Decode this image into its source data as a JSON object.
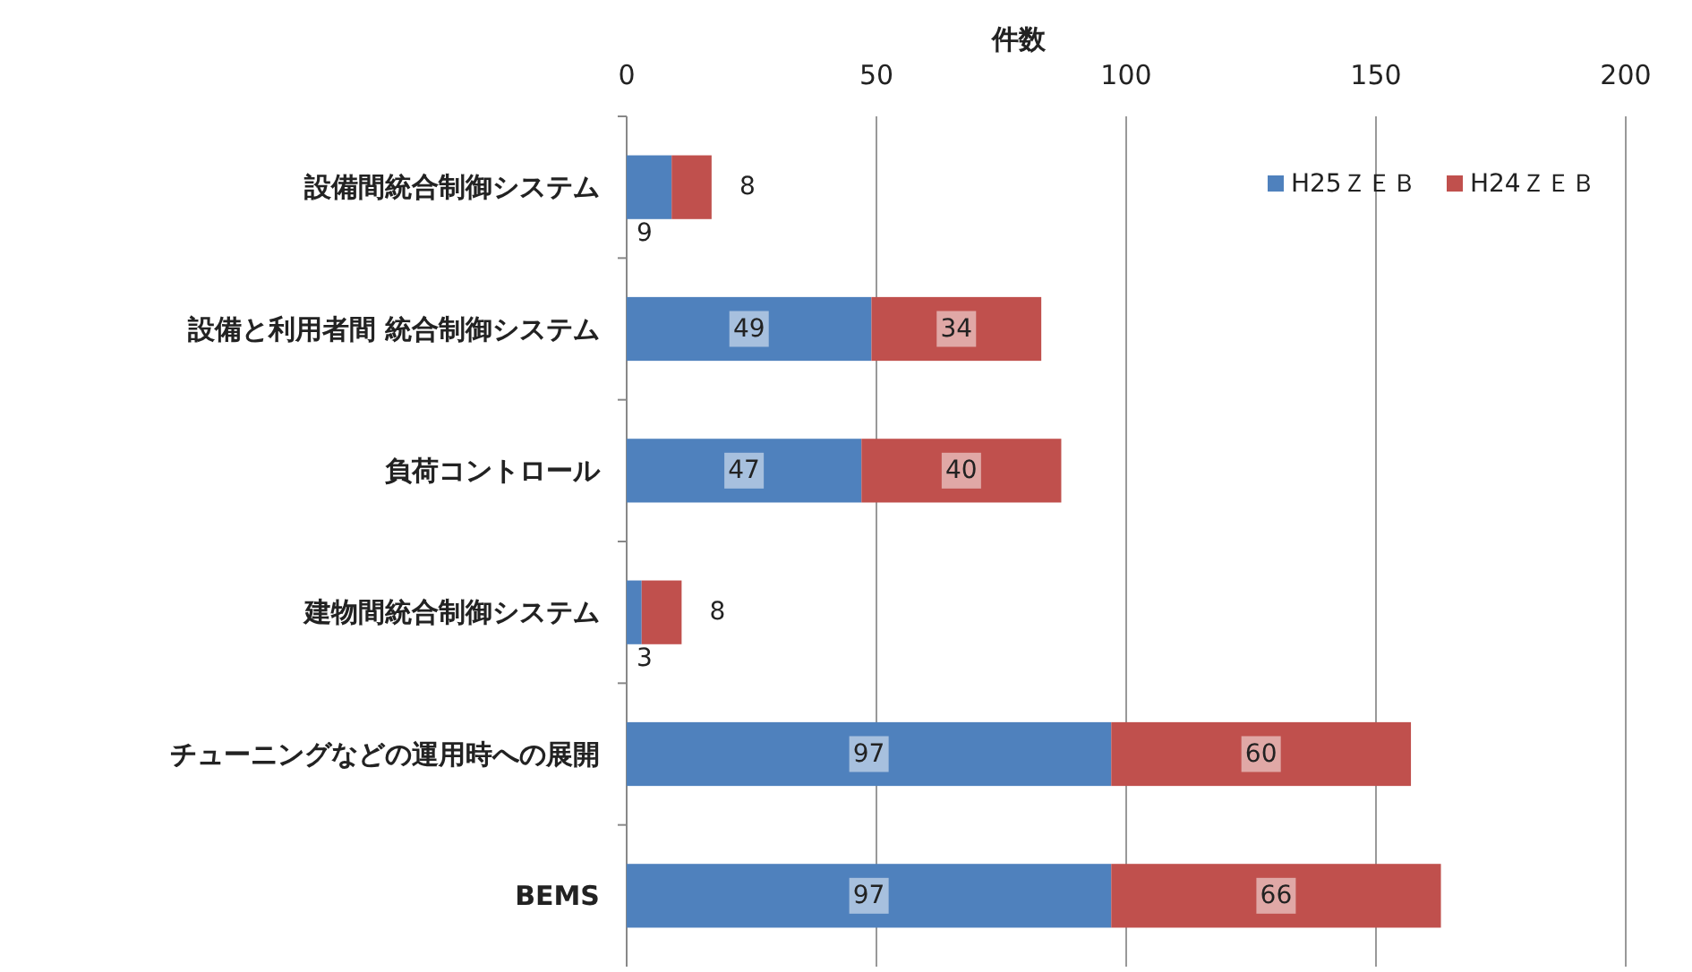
{
  "chart_data": {
    "type": "bar",
    "orientation": "horizontal",
    "stacked": true,
    "xlabel": "件数",
    "categories": [
      "設備間統合制御システム",
      "設備と利用者間 統合制御システム",
      "負荷コントロール",
      "建物間統合制御システム",
      "チューニングなどの運用時への展開",
      "BEMS"
    ],
    "series": [
      {
        "name": "H25ＺＥＢ",
        "color": "#4f81bd",
        "values": [
          9,
          49,
          47,
          3,
          97,
          97
        ]
      },
      {
        "name": "H24ＺＥＢ",
        "color": "#c0504d",
        "values": [
          8,
          34,
          40,
          8,
          60,
          66
        ]
      }
    ],
    "xlim": [
      0,
      200
    ],
    "xticks": [
      0,
      50,
      100,
      150,
      200
    ],
    "grid": "x",
    "legend": "top right",
    "data_labels": true
  }
}
